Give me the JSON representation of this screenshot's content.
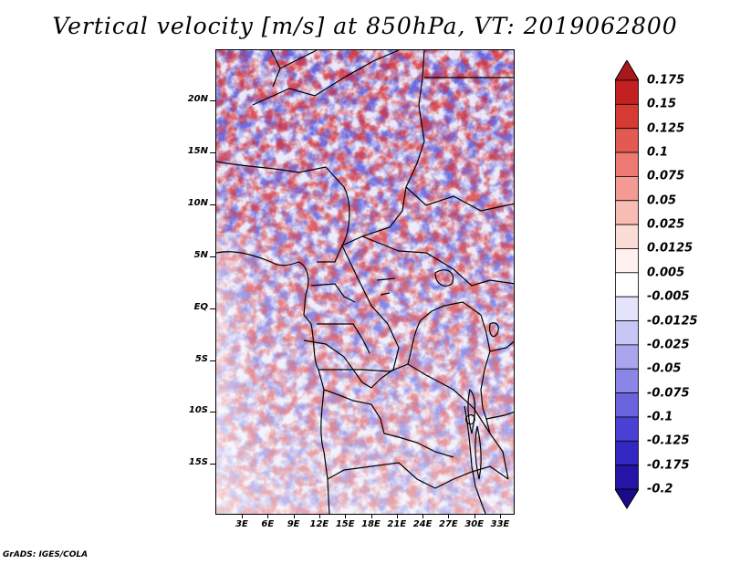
{
  "title": "Vertical velocity [m/s] at 850hPa, VT: 2019062800",
  "map": {
    "lat_labels": [
      "20N",
      "15N",
      "10N",
      "5N",
      "EQ",
      "5S",
      "10S",
      "15S"
    ],
    "lon_labels": [
      "3E",
      "6E",
      "9E",
      "12E",
      "15E",
      "18E",
      "21E",
      "24E",
      "27E",
      "30E",
      "33E"
    ],
    "field": "vertical velocity",
    "colors": {
      "upward": "#d7262b",
      "downward": "#2e2fcf",
      "land_line": "#000000"
    }
  },
  "colorbar": {
    "levels": [
      "0.175",
      "0.15",
      "0.125",
      "0.1",
      "0.075",
      "0.05",
      "0.025",
      "0.0125",
      "0.005",
      "-0.005",
      "-0.0125",
      "-0.025",
      "-0.05",
      "-0.075",
      "-0.1",
      "-0.125",
      "-0.175",
      "-0.2"
    ],
    "colors": [
      "#a8191b",
      "#c22021",
      "#d63a33",
      "#e25a52",
      "#ec7a72",
      "#f39b93",
      "#f8bcb5",
      "#fcdcd7",
      "#fff1ef",
      "#ffffff",
      "#e3e3fb",
      "#c8c6f5",
      "#a9a6ee",
      "#8a85e6",
      "#6b63de",
      "#4b40d4",
      "#3327c2",
      "#2514a6",
      "#1a0b8a"
    ]
  },
  "footer": "GrADS: IGES/COLA"
}
